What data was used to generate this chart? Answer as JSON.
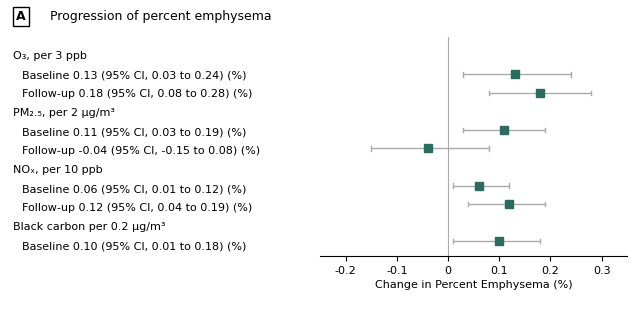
{
  "title": "Progression of percent emphysema",
  "panel_label": "A",
  "xlabel": "Change in Percent Emphysema (%)",
  "xlim": [
    -0.25,
    0.35
  ],
  "xticks": [
    -0.2,
    -0.1,
    0.0,
    0.1,
    0.2,
    0.3
  ],
  "xtick_labels": [
    "-0.2",
    "-0.1",
    "0",
    "0.1",
    "0.2",
    "0.3"
  ],
  "rows": [
    {
      "type": "header",
      "label": "O₃, per 3 ppb",
      "y": 10
    },
    {
      "type": "data",
      "label": "Baseline 0.13 (95% CI, 0.03 to 0.24) (%)",
      "mean": 0.13,
      "ci_low": 0.03,
      "ci_high": 0.24,
      "y": 9
    },
    {
      "type": "data",
      "label": "Follow-up 0.18 (95% CI, 0.08 to 0.28) (%)",
      "mean": 0.18,
      "ci_low": 0.08,
      "ci_high": 0.28,
      "y": 8
    },
    {
      "type": "header",
      "label": "PM₂.₅, per 2 μg/m³",
      "y": 7
    },
    {
      "type": "data",
      "label": "Baseline 0.11 (95% CI, 0.03 to 0.19) (%)",
      "mean": 0.11,
      "ci_low": 0.03,
      "ci_high": 0.19,
      "y": 6
    },
    {
      "type": "data",
      "label": "Follow-up -0.04 (95% CI, -0.15 to 0.08) (%)",
      "mean": -0.04,
      "ci_low": -0.15,
      "ci_high": 0.08,
      "y": 5
    },
    {
      "type": "header",
      "label": "NOₓ, per 10 ppb",
      "y": 4
    },
    {
      "type": "data",
      "label": "Baseline 0.06 (95% CI, 0.01 to 0.12) (%)",
      "mean": 0.06,
      "ci_low": 0.01,
      "ci_high": 0.12,
      "y": 3
    },
    {
      "type": "data",
      "label": "Follow-up 0.12 (95% CI, 0.04 to 0.19) (%)",
      "mean": 0.12,
      "ci_low": 0.04,
      "ci_high": 0.19,
      "y": 2
    },
    {
      "type": "header",
      "label": "Black carbon per 0.2 μg/m³",
      "y": 1
    },
    {
      "type": "data",
      "label": "Baseline 0.10 (95% CI, 0.01 to 0.18) (%)",
      "mean": 0.1,
      "ci_low": 0.01,
      "ci_high": 0.18,
      "y": 0
    }
  ],
  "marker_color": "#2d6b5e",
  "line_color": "#aaaaaa",
  "marker_size": 6,
  "vline_color": "#aaaaaa",
  "background_color": "#ffffff",
  "text_color": "#000000",
  "font_size": 8.0,
  "header_font_size": 8.0,
  "indent": 0.03
}
